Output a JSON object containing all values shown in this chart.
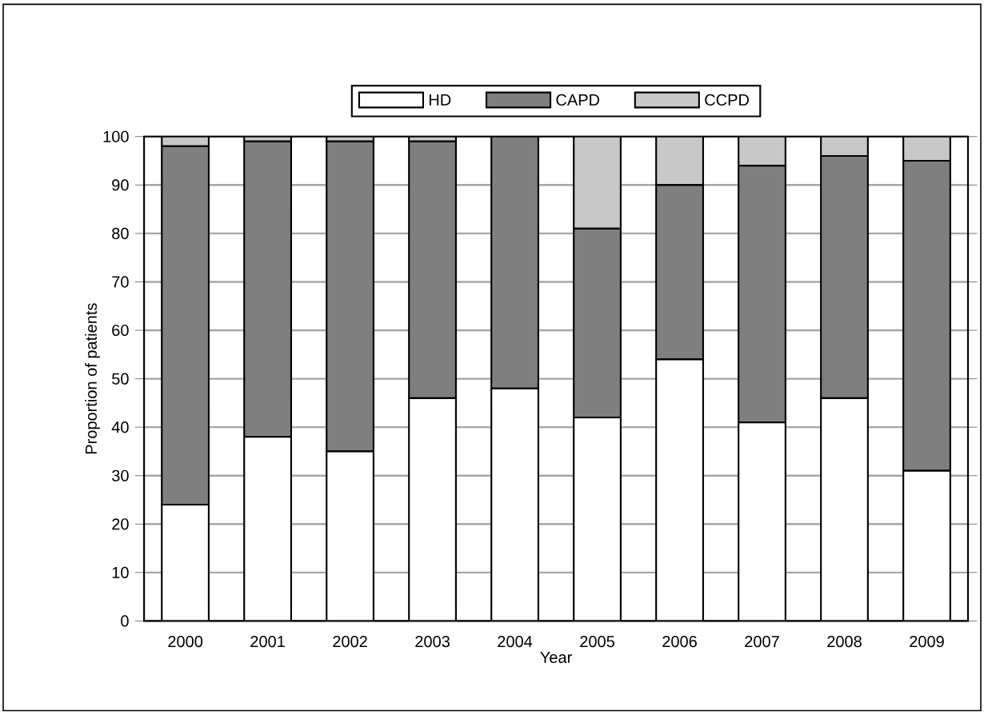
{
  "chart_data": {
    "type": "bar",
    "stacked": true,
    "xlabel": "Year",
    "ylabel": "Proportion of patients",
    "categories": [
      "2000",
      "2001",
      "2002",
      "2003",
      "2004",
      "2005",
      "2006",
      "2007",
      "2008",
      "2009"
    ],
    "series": [
      {
        "name": "HD",
        "color": "#ffffff",
        "values": [
          24,
          38,
          35,
          46,
          48,
          42,
          54,
          41,
          46,
          31
        ]
      },
      {
        "name": "CAPD",
        "color": "#7f7f7f",
        "values": [
          74,
          61,
          64,
          53,
          52,
          39,
          36,
          53,
          50,
          64
        ]
      },
      {
        "name": "CCPD",
        "color": "#c8c8c8",
        "values": [
          2,
          1,
          1,
          1,
          0,
          19,
          10,
          6,
          4,
          5
        ]
      }
    ],
    "ylim": [
      0,
      100
    ],
    "yticks": [
      0,
      10,
      20,
      30,
      40,
      50,
      60,
      70,
      80,
      90,
      100
    ],
    "grid": "y",
    "legend": "top"
  }
}
